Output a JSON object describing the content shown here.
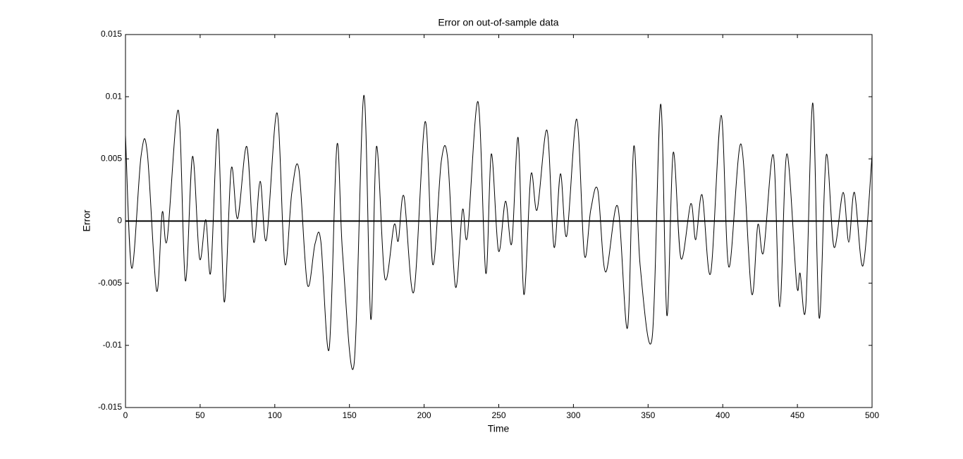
{
  "chart_data": {
    "type": "line",
    "title": "Error on out-of-sample data",
    "xlabel": "Time",
    "ylabel": "Error",
    "xlim": [
      0,
      500
    ],
    "ylim": [
      -0.015,
      0.015
    ],
    "xticks": [
      0,
      50,
      100,
      150,
      200,
      250,
      300,
      350,
      400,
      450,
      500
    ],
    "yticks": [
      -0.015,
      -0.01,
      -0.005,
      0,
      0.005,
      0.01,
      0.015
    ],
    "grid": false,
    "reference_line": 0,
    "color": "#000000",
    "x": [
      0,
      4.2,
      10.4,
      14.6,
      20.8,
      24.6,
      27.9,
      35.4,
      40.1,
      44.9,
      49.6,
      53.8,
      57.1,
      61.9,
      66.1,
      70.8,
      75.1,
      81.2,
      85.9,
      90.2,
      94.4,
      101.5,
      106.7,
      111.4,
      116.1,
      121.8,
      127,
      130.8,
      136.4,
      141.6,
      145.4,
      153,
      159.6,
      164.3,
      168.1,
      173.7,
      179.9,
      182.7,
      186.5,
      193.1,
      200.7,
      205.8,
      211.5,
      215.8,
      221,
      225.7,
      229,
      236.1,
      241.3,
      245,
      249.8,
      254.5,
      258.7,
      263,
      266.8,
      271.5,
      275.7,
      282.3,
      287,
      291.3,
      295.5,
      302.2,
      307.3,
      311.6,
      316.3,
      321.5,
      329.6,
      336.2,
      340.4,
      344.7,
      352.7,
      358.4,
      362.6,
      366.8,
      372,
      378.6,
      381.9,
      386.2,
      391.9,
      398.9,
      404.1,
      412.2,
      419.3,
      423.5,
      427.3,
      433.9,
      438.2,
      442.9,
      449.5,
      451.8,
      455.6,
      460.3,
      464.6,
      469.3,
      474.5,
      480.6,
      484.4,
      488.2,
      493.9,
      500
    ],
    "values": [
      0.0069,
      -0.0038,
      0.0052,
      0.0055,
      -0.0056,
      0.0007,
      -0.0015,
      0.0089,
      -0.0048,
      0.0052,
      -0.003,
      0.0001,
      -0.0041,
      0.0074,
      -0.0065,
      0.0042,
      0.0002,
      0.006,
      -0.0017,
      0.0032,
      -0.0015,
      0.0087,
      -0.0034,
      0.0023,
      0.0042,
      -0.0051,
      -0.0018,
      -0.0016,
      -0.0103,
      0.0061,
      -0.0026,
      -0.0116,
      0.0101,
      -0.0079,
      0.006,
      -0.0046,
      -0.0003,
      -0.0016,
      0.002,
      -0.0057,
      0.008,
      -0.0035,
      0.0048,
      0.005,
      -0.0053,
      0.0009,
      -0.0012,
      0.0096,
      -0.0042,
      0.0054,
      -0.0024,
      0.0016,
      -0.0018,
      0.0067,
      -0.0059,
      0.0037,
      0.0009,
      0.0073,
      -0.0021,
      0.0038,
      -0.0012,
      0.0082,
      -0.0027,
      0.0009,
      0.0025,
      -0.0041,
      0.0012,
      -0.0086,
      0.006,
      -0.0036,
      -0.0094,
      0.0094,
      -0.0076,
      0.0055,
      -0.003,
      0.0014,
      -0.0015,
      0.0021,
      -0.0042,
      0.0085,
      -0.0037,
      0.0062,
      -0.0058,
      -0.0003,
      -0.0025,
      0.0053,
      -0.0069,
      0.0054,
      -0.0051,
      -0.0042,
      -0.0069,
      0.0095,
      -0.0078,
      0.0053,
      -0.0021,
      0.0023,
      -0.0017,
      0.0023,
      -0.0036,
      0.0053
    ]
  }
}
